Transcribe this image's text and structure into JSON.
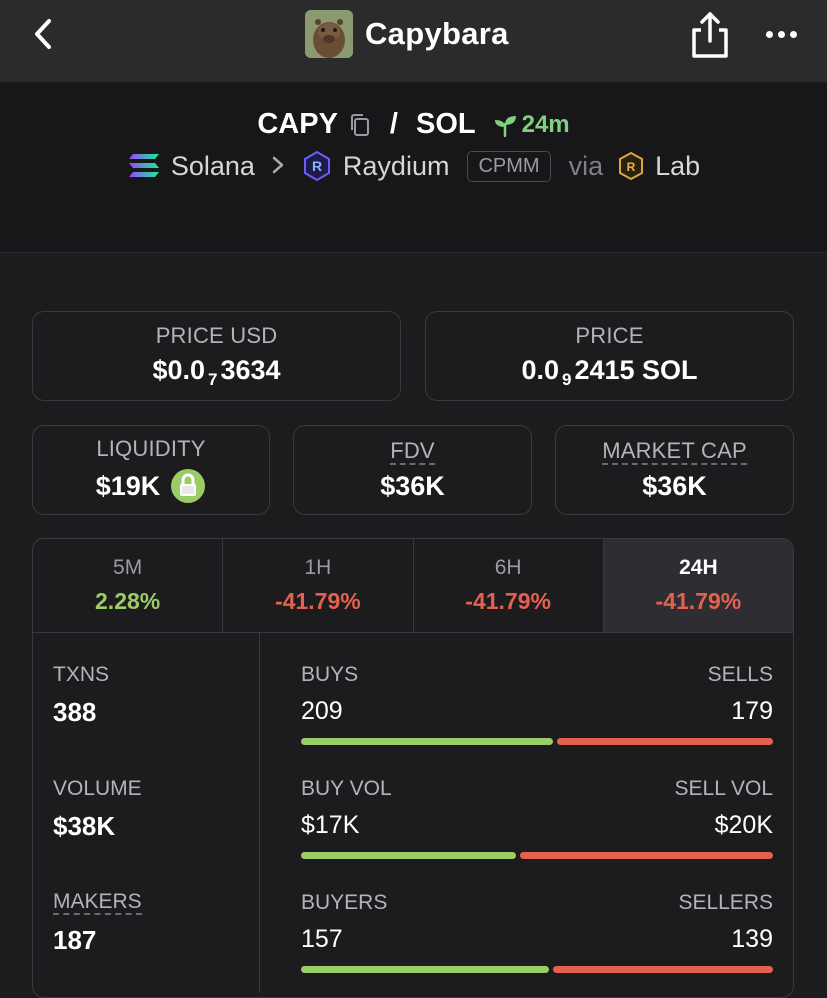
{
  "app": {
    "title": "Capybara"
  },
  "pair": {
    "base": "CAPY",
    "separator": "/",
    "quote": "SOL",
    "age": "24m",
    "chain": "Solana",
    "dex": "Raydium",
    "pool_type": "CPMM",
    "via_label": "via",
    "via": "Lab"
  },
  "stats": {
    "price_usd": {
      "label": "PRICE USD",
      "prefix": "$0.0",
      "zeros": "7",
      "digits": "3634"
    },
    "price_native": {
      "label": "PRICE",
      "prefix": "0.0",
      "zeros": "9",
      "digits": "2415 SOL"
    },
    "liquidity": {
      "label": "LIQUIDITY",
      "value": "$19K"
    },
    "fdv": {
      "label": "FDV",
      "value": "$36K"
    },
    "market_cap": {
      "label": "MARKET CAP",
      "value": "$36K"
    }
  },
  "timeframes": [
    {
      "label": "5M",
      "change": "2.28%"
    },
    {
      "label": "1H",
      "change": "-41.79%"
    },
    {
      "label": "6H",
      "change": "-41.79%"
    },
    {
      "label": "24H",
      "change": "-41.79%"
    }
  ],
  "activity": {
    "txns": {
      "label": "TXNS",
      "value": "388"
    },
    "volume": {
      "label": "VOLUME",
      "value": "$38K"
    },
    "makers": {
      "label": "MAKERS",
      "value": "187"
    },
    "buys_sells": {
      "left_label": "BUYS",
      "right_label": "SELLS",
      "left_value": "209",
      "right_value": "179",
      "buy_share": 0.539
    },
    "vol_split": {
      "left_label": "BUY VOL",
      "right_label": "SELL VOL",
      "left_value": "$17K",
      "right_value": "$20K",
      "buy_share": 0.46
    },
    "buyers_sellers": {
      "left_label": "BUYERS",
      "right_label": "SELLERS",
      "left_value": "157",
      "right_value": "139",
      "buy_share": 0.53
    }
  },
  "colors": {
    "positive": "#9ccc65",
    "negative": "#e5604f",
    "accent_age": "#7fd07f"
  }
}
